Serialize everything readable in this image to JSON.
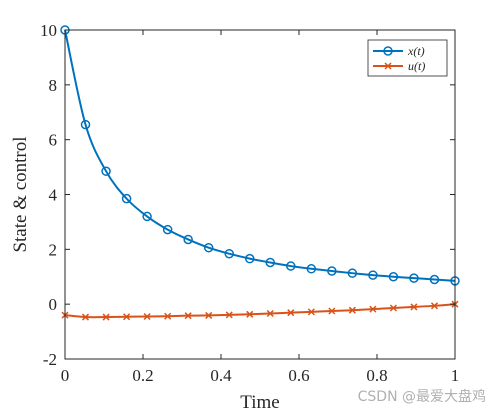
{
  "chart_data": {
    "type": "line",
    "xlabel": "Time",
    "ylabel": "State & control",
    "xlim": [
      0,
      1
    ],
    "ylim": [
      -2,
      10
    ],
    "xticks": [
      "0",
      "0.2",
      "0.4",
      "0.6",
      "0.8",
      "1"
    ],
    "xtick_values": [
      0,
      0.2,
      0.4,
      0.6,
      0.8,
      1
    ],
    "yticks": [
      "-2",
      "0",
      "2",
      "4",
      "6",
      "8",
      "10"
    ],
    "ytick_values": [
      -2,
      0,
      2,
      4,
      6,
      8,
      10
    ],
    "grid": false,
    "legend_position": "top-right",
    "series": [
      {
        "name": "x(t)",
        "color": "#0072BD",
        "marker": "circle",
        "x": [
          0,
          0.0526,
          0.1053,
          0.1579,
          0.2105,
          0.2632,
          0.3158,
          0.3684,
          0.4211,
          0.4737,
          0.5263,
          0.5789,
          0.6316,
          0.6842,
          0.7368,
          0.7895,
          0.8421,
          0.8947,
          0.9474,
          1
        ],
        "values": [
          10,
          6.55,
          4.85,
          3.85,
          3.2,
          2.72,
          2.36,
          2.06,
          1.84,
          1.66,
          1.52,
          1.39,
          1.29,
          1.21,
          1.13,
          1.06,
          1.0,
          0.95,
          0.9,
          0.85
        ]
      },
      {
        "name": "u(t)",
        "color": "#D95319",
        "marker": "x",
        "x": [
          0,
          0.0526,
          0.1053,
          0.1579,
          0.2105,
          0.2632,
          0.3158,
          0.3684,
          0.4211,
          0.4737,
          0.5263,
          0.5789,
          0.6316,
          0.6842,
          0.7368,
          0.7895,
          0.8421,
          0.8947,
          0.9474,
          1
        ],
        "values": [
          -0.4,
          -0.47,
          -0.47,
          -0.46,
          -0.45,
          -0.44,
          -0.42,
          -0.41,
          -0.39,
          -0.37,
          -0.34,
          -0.31,
          -0.28,
          -0.25,
          -0.22,
          -0.18,
          -0.14,
          -0.1,
          -0.06,
          0.0
        ]
      }
    ]
  },
  "watermark": "CSDN @最爱大盘鸡"
}
